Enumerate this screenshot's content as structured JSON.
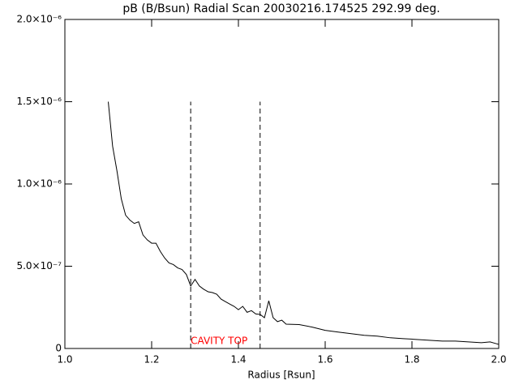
{
  "chart_data": {
    "type": "line",
    "title": "pB (B/Bsun) Radial Scan 20030216.174525 292.99 deg.",
    "xlabel": "Radius [Rsun]",
    "xlim": [
      1.0,
      2.0
    ],
    "ylim": [
      0,
      2e-06
    ],
    "xticks": [
      {
        "value": 1.0,
        "label": "1.0"
      },
      {
        "value": 1.2,
        "label": "1.2"
      },
      {
        "value": 1.4,
        "label": "1.4"
      },
      {
        "value": 1.6,
        "label": "1.6"
      },
      {
        "value": 1.8,
        "label": "1.8"
      },
      {
        "value": 2.0,
        "label": "2.0"
      }
    ],
    "yticks": [
      0,
      {
        "value": 5e-07,
        "label": "5.0×10⁻⁷"
      },
      {
        "value": 1e-06,
        "label": "1.0×10⁻⁶"
      },
      {
        "value": 1.5e-06,
        "label": "1.5×10⁻⁶"
      },
      {
        "value": 2e-06,
        "label": "2.0×10⁻⁶"
      }
    ],
    "color": "#000000",
    "x": [
      1.1,
      1.11,
      1.12,
      1.13,
      1.14,
      1.15,
      1.16,
      1.17,
      1.18,
      1.19,
      1.2,
      1.21,
      1.22,
      1.23,
      1.24,
      1.25,
      1.26,
      1.27,
      1.28,
      1.29,
      1.3,
      1.31,
      1.32,
      1.33,
      1.34,
      1.35,
      1.36,
      1.37,
      1.38,
      1.39,
      1.4,
      1.41,
      1.42,
      1.43,
      1.44,
      1.45,
      1.46,
      1.47,
      1.48,
      1.49,
      1.5,
      1.51,
      1.54,
      1.57,
      1.6,
      1.63,
      1.66,
      1.69,
      1.72,
      1.75,
      1.78,
      1.81,
      1.84,
      1.87,
      1.9,
      1.93,
      1.96,
      1.98,
      2.0
    ],
    "values": [
      1.5e-06,
      1.23e-06,
      1.08e-06,
      9.1e-07,
      8.1e-07,
      7.8e-07,
      7.6e-07,
      7.7e-07,
      6.9e-07,
      6.6e-07,
      6.4e-07,
      6.4e-07,
      5.9e-07,
      5.5e-07,
      5.2e-07,
      5.1e-07,
      4.9e-07,
      4.8e-07,
      4.5e-07,
      3.8e-07,
      4.2e-07,
      3.8e-07,
      3.6e-07,
      3.45e-07,
      3.4e-07,
      3.3e-07,
      3e-07,
      2.85e-07,
      2.7e-07,
      2.56e-07,
      2.36e-07,
      2.56e-07,
      2.2e-07,
      2.3e-07,
      2.1e-07,
      2.07e-07,
      1.87e-07,
      2.9e-07,
      1.87e-07,
      1.63e-07,
      1.72e-07,
      1.48e-07,
      1.45e-07,
      1.3e-07,
      1.1e-07,
      1e-07,
      9e-08,
      8e-08,
      7.5e-08,
      6.5e-08,
      6e-08,
      5.5e-08,
      5e-08,
      4.5e-08,
      4.5e-08,
      4e-08,
      3.5e-08,
      4e-08,
      2.5e-08
    ],
    "vlines": [
      {
        "x": 1.29,
        "y": 1.5e-06
      },
      {
        "x": 1.45,
        "y": 1.5e-06
      }
    ],
    "annotation": {
      "text": "CAVITY TOP",
      "x": 1.29,
      "color": "#ff0000"
    }
  }
}
